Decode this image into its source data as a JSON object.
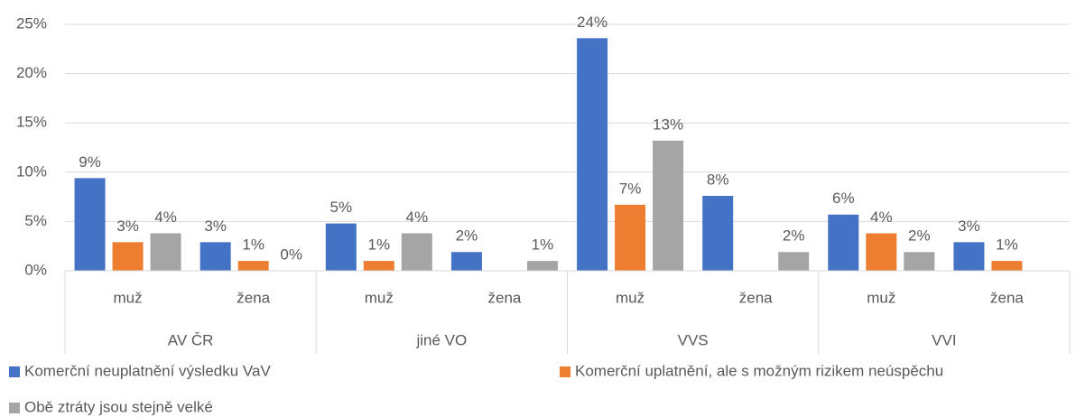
{
  "chart_data": {
    "type": "bar",
    "categories": [
      "muž",
      "žena",
      "muž",
      "žena",
      "muž",
      "žena",
      "muž",
      "žena"
    ],
    "category_groups": [
      "AV ČR",
      "jiné VO",
      "VVS",
      "VVI"
    ],
    "series": [
      {
        "name": "Komerční neuplatnění výsledku VaV",
        "color": "#4472c4",
        "values": [
          9.4,
          2.9,
          4.8,
          1.9,
          23.6,
          7.6,
          5.7,
          2.9
        ],
        "value_labels": [
          "9%",
          "3%",
          "5%",
          "2%",
          "24%",
          "8%",
          "6%",
          "3%"
        ]
      },
      {
        "name": "Komerční uplatnění, ale s možným rizikem neúspěchu",
        "color": "#ed7d31",
        "values": [
          2.9,
          1.0,
          1.0,
          null,
          6.7,
          null,
          3.8,
          1.0
        ],
        "value_labels": [
          "3%",
          "1%",
          "1%",
          null,
          "7%",
          null,
          "4%",
          "1%"
        ]
      },
      {
        "name": "Obě ztráty jsou stejně velké",
        "color": "#a5a5a5",
        "values": [
          3.8,
          0,
          3.8,
          1.0,
          13.2,
          1.9,
          1.9,
          null
        ],
        "value_labels": [
          "4%",
          "0%",
          "4%",
          "1%",
          "13%",
          "2%",
          "2%",
          null
        ]
      }
    ],
    "ylim": [
      0,
      25
    ],
    "yticks": [
      {
        "value": 0,
        "label": "0%"
      },
      {
        "value": 5,
        "label": "5%"
      },
      {
        "value": 10,
        "label": "10%"
      },
      {
        "value": 15,
        "label": "15%"
      },
      {
        "value": 20,
        "label": "20%"
      },
      {
        "value": 25,
        "label": "25%"
      }
    ],
    "grid": true,
    "legend": "bottom"
  }
}
